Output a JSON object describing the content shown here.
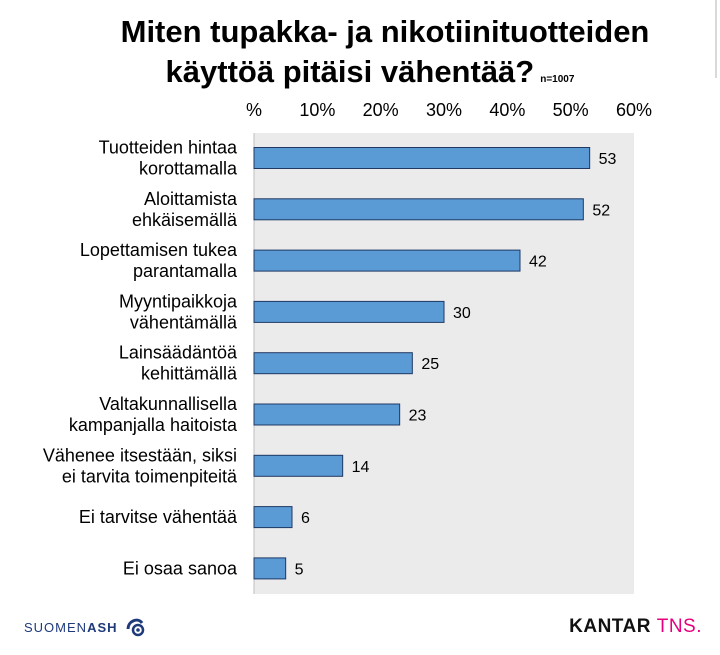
{
  "title": {
    "line1": "Miten tupakka- ja nikotiinituotteiden",
    "line2": "käyttöä pitäisi vähentää?",
    "note": "n=1007"
  },
  "chart_data": {
    "type": "bar",
    "orientation": "horizontal",
    "categories": [
      [
        "Tuotteiden hintaa",
        "korottamalla"
      ],
      [
        "Aloittamista",
        "ehkäisemällä"
      ],
      [
        "Lopettamisen tukea",
        "parantamalla"
      ],
      [
        "Myyntipaikkoja",
        "vähentämällä"
      ],
      [
        "Lainsäädäntöä",
        "kehittämällä"
      ],
      [
        "Valtakunnallisella",
        "kampanjalla haitoista"
      ],
      [
        "Vähenee itsestään, siksi",
        "ei tarvita toimenpiteitä"
      ],
      [
        "Ei tarvitse vähentää"
      ],
      [
        "Ei osaa sanoa"
      ]
    ],
    "values": [
      53,
      52,
      42,
      30,
      25,
      23,
      14,
      6,
      5
    ],
    "xlim": [
      0,
      60
    ],
    "x_ticks": [
      "%",
      "10%",
      "20%",
      "30%",
      "40%",
      "50%",
      "60%"
    ],
    "x_tick_position": "top",
    "bar_color": "#5b9bd5",
    "bar_border": "#1f3864",
    "plot_background": "#ebebeb",
    "data_labels": true,
    "grid": false
  },
  "footer": {
    "left_brand_prefix": "SUOMEN",
    "left_brand_bold": "ASH",
    "right_brand_main": "KANTAR",
    "right_brand_accent": "TNS."
  }
}
